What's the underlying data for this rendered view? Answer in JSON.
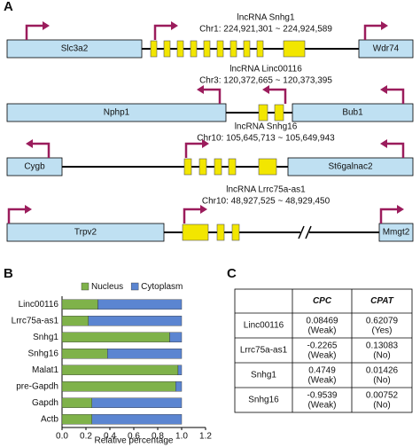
{
  "panel_labels": [
    "A",
    "B",
    "C"
  ],
  "panel_a": {
    "rows": [
      {
        "title": "lncRNA Snhg1",
        "coords": "Chr1: 224,921,301 ~ 224,924,589",
        "left_gene": "Slc3a2",
        "right_gene": "Wdr74"
      },
      {
        "title": "lncRNA Linc00116",
        "coords": "Chr3: 120,372,665 ~ 120,373,395",
        "left_gene": "Nphp1",
        "right_gene": "Bub1"
      },
      {
        "title": "lncRNA Snhg16",
        "coords": "Chr10: 105,645,713 ~ 105,649,943",
        "left_gene": "Cygb",
        "right_gene": "St6galnac2"
      },
      {
        "title": "lncRNA Lrrc75a-as1",
        "coords": "Chr10: 48,927,525 ~ 48,929,450",
        "left_gene": "Trpv2",
        "right_gene": "Mmgt2"
      }
    ]
  },
  "chart_data": {
    "type": "stacked-barh",
    "categories": [
      "Linc00116",
      "Lrrc75a-as1",
      "Snhg1",
      "Snhg16",
      "Malat1",
      "pre-Gapdh",
      "Gapdh",
      "Actb"
    ],
    "series": [
      {
        "name": "Nucleus",
        "color": "#7fb24a",
        "values": [
          0.3,
          0.22,
          0.9,
          0.38,
          0.97,
          0.95,
          0.25,
          0.25
        ]
      },
      {
        "name": "Cytoplasm",
        "color": "#5b85d1",
        "values": [
          0.7,
          0.78,
          0.1,
          0.62,
          0.03,
          0.05,
          0.75,
          0.75
        ]
      }
    ],
    "xlabel": "Relative percentage",
    "xlim": [
      0,
      1.2
    ],
    "xticks": [
      {
        "value": 0,
        "label": "0.0"
      },
      0.2,
      0.4,
      0.6,
      0.8,
      {
        "value": 1,
        "label": "1.0"
      },
      1.2
    ],
    "legend": "top"
  },
  "table": {
    "header": [
      "CPC",
      "CPAT"
    ],
    "rows": [
      [
        "Linc00116",
        [
          "0.08469",
          "(Weak)"
        ],
        [
          "0.62079",
          "(Yes)"
        ]
      ],
      [
        "Lrrc75a-as1",
        [
          "-0.2265",
          "(Weak)"
        ],
        [
          "0.13083",
          "(No)"
        ]
      ],
      [
        "Snhg1",
        [
          "0.4749",
          "(Weak)"
        ],
        [
          "0.01426",
          "(No)"
        ]
      ],
      [
        "Snhg16",
        [
          "-0.9539",
          "(Weak)"
        ],
        [
          "0.00752",
          "(No)"
        ]
      ]
    ]
  }
}
